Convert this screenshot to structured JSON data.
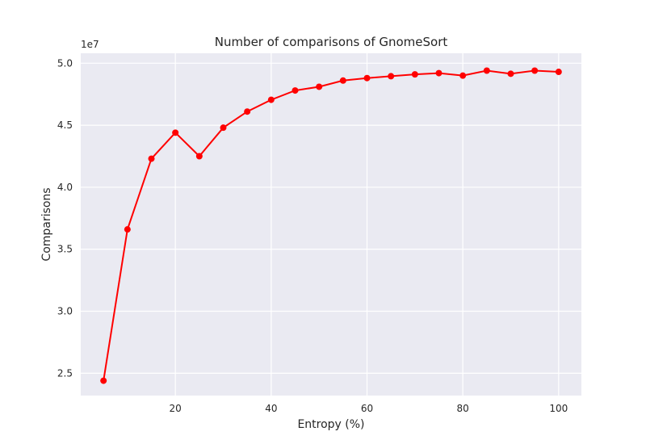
{
  "chart_data": {
    "type": "line",
    "title": "Number of comparisons of GnomeSort",
    "xlabel": "Entropy (%)",
    "ylabel": "Comparisons",
    "y_offset_label": "1e7",
    "xlim": [
      0.25,
      104.75
    ],
    "ylim": [
      2.32,
      5.08
    ],
    "x_ticks": [
      20,
      40,
      60,
      80,
      100
    ],
    "x_tick_labels": [
      "20",
      "40",
      "60",
      "80",
      "100"
    ],
    "y_ticks": [
      2.5,
      3.0,
      3.5,
      4.0,
      4.5,
      5.0
    ],
    "y_tick_labels": [
      "2.5",
      "3.0",
      "3.5",
      "4.0",
      "4.5",
      "5.0"
    ],
    "grid": true,
    "background": "#eaeaf2",
    "series": [
      {
        "color": "#ff0000",
        "marker": "circle",
        "x": [
          5,
          10,
          15,
          20,
          25,
          30,
          35,
          40,
          45,
          50,
          55,
          60,
          65,
          70,
          75,
          80,
          85,
          90,
          95,
          100
        ],
        "y": [
          2.44,
          3.66,
          4.23,
          4.44,
          4.25,
          4.48,
          4.61,
          4.705,
          4.78,
          4.81,
          4.86,
          4.88,
          4.895,
          4.91,
          4.92,
          4.9,
          4.94,
          4.915,
          4.94,
          4.93
        ]
      }
    ]
  }
}
